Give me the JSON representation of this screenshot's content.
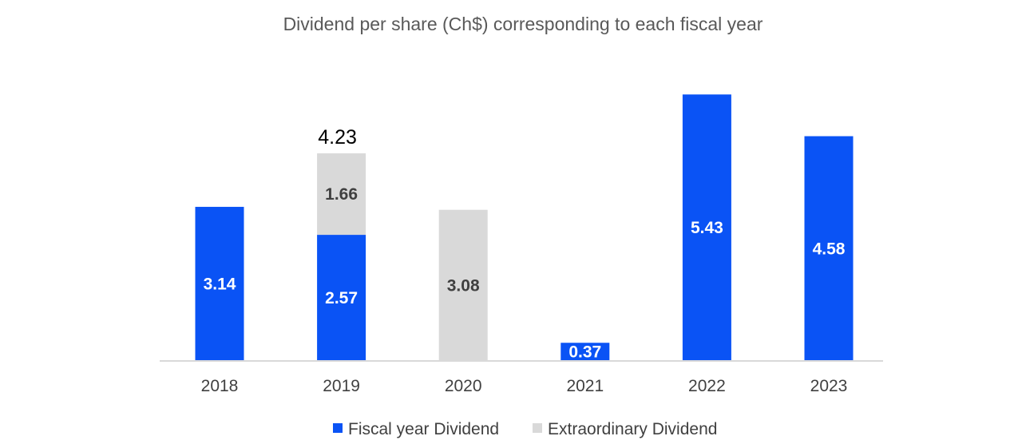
{
  "chart_data": {
    "type": "bar",
    "stacked": true,
    "title": "Dividend per share (Ch$) corresponding to each fiscal year",
    "categories": [
      "2018",
      "2019",
      "2020",
      "2021",
      "2022",
      "2023"
    ],
    "series": [
      {
        "name": "Fiscal year Dividend",
        "color": "#0a53f5",
        "label_color": "#ffffff",
        "values": [
          3.14,
          2.57,
          0,
          0.37,
          5.43,
          4.58
        ]
      },
      {
        "name": "Extraordinary Dividend",
        "color": "#d9d9d9",
        "label_color": "#404040",
        "values": [
          0,
          1.66,
          3.08,
          0,
          0,
          0
        ]
      }
    ],
    "totals": [
      null,
      "4.23",
      null,
      null,
      null,
      null
    ],
    "ylim": [
      0,
      5.5
    ],
    "grid": false,
    "legend": "bottom"
  }
}
